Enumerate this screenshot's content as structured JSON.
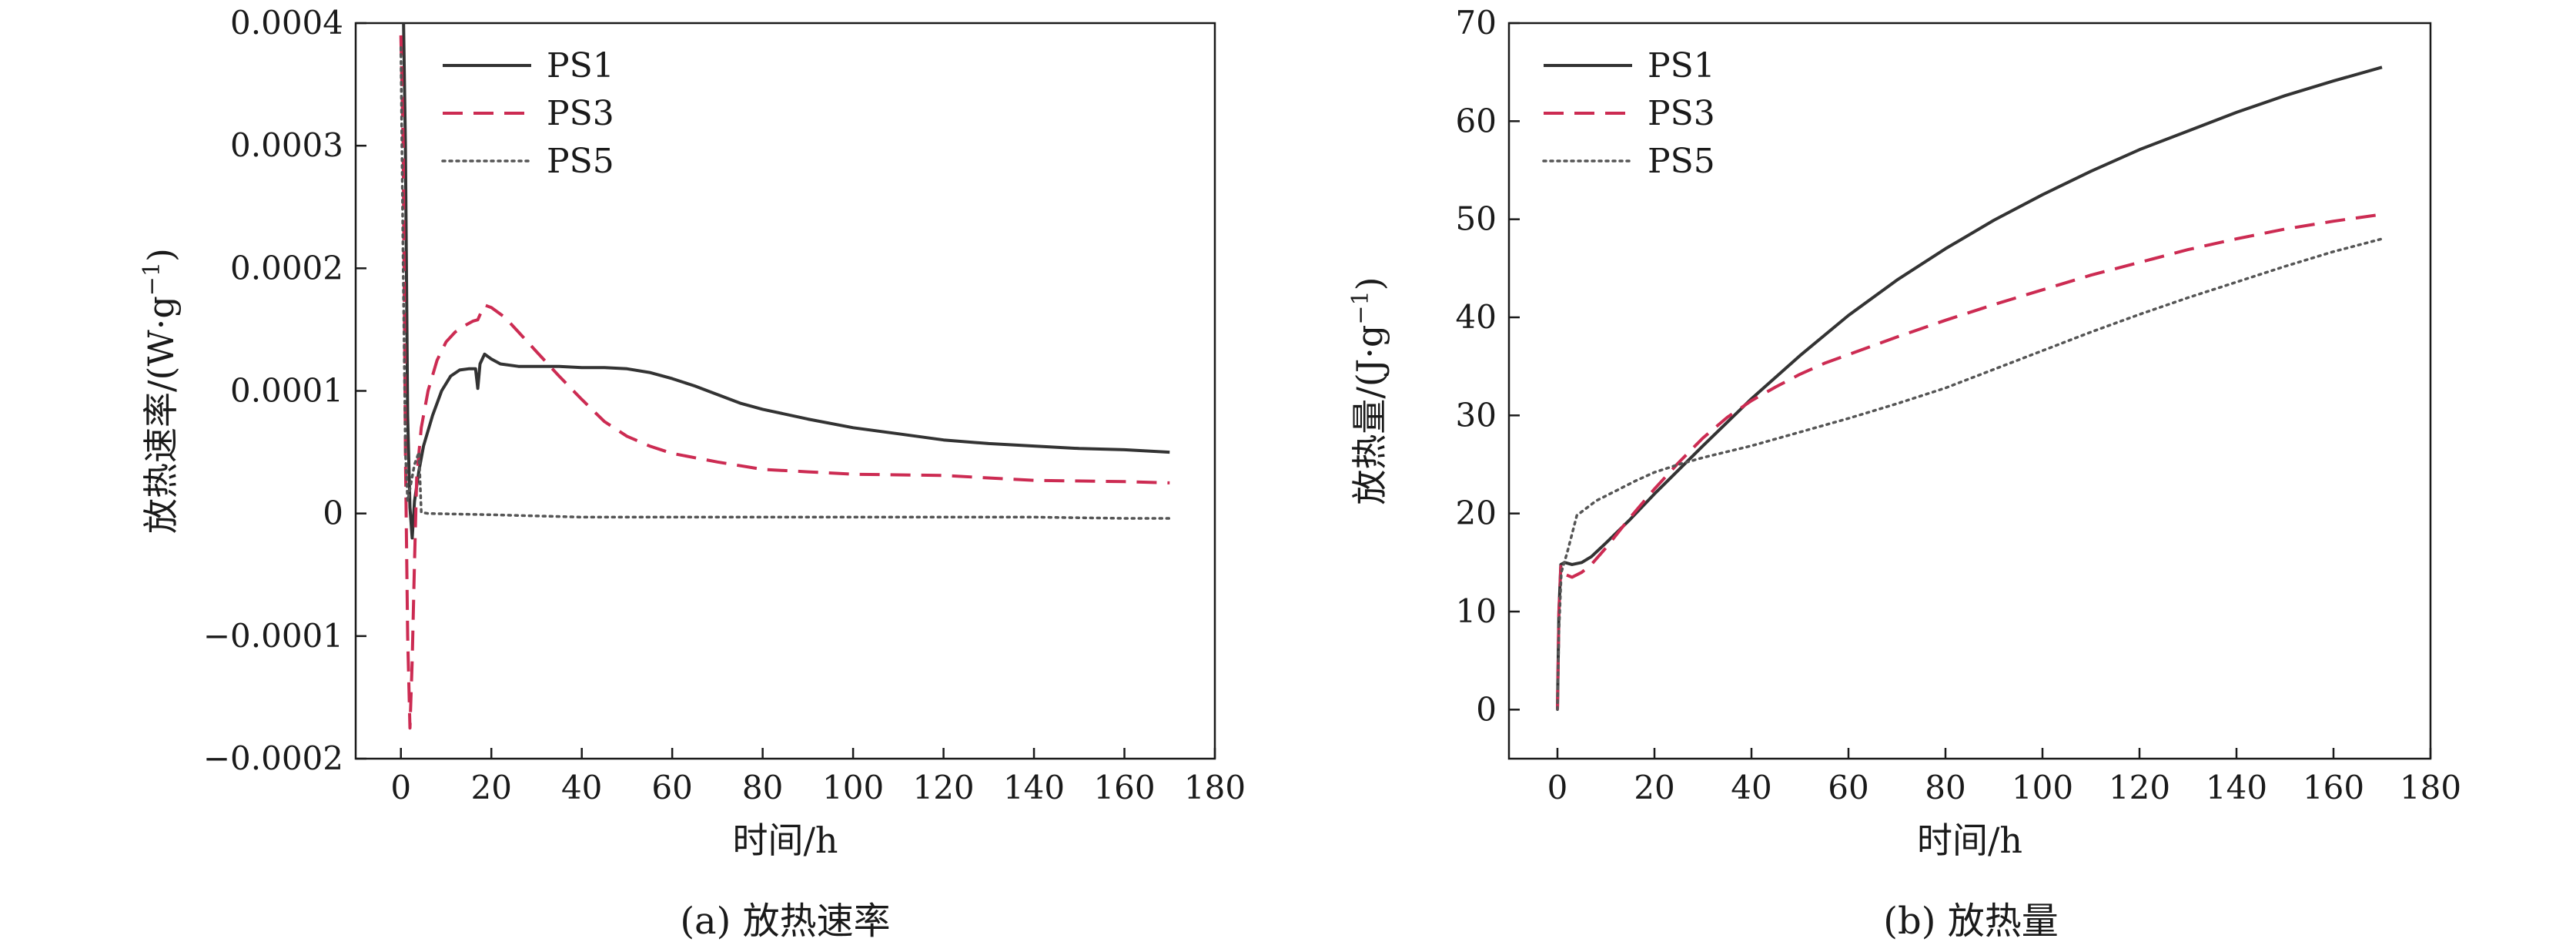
{
  "chart_data": [
    {
      "type": "line",
      "caption": "(a) 放热速率",
      "xlabel": "时间/h",
      "ylabel": "放热速率/(W·g",
      "ylabel_sup": "−1",
      "ylabel_close": ")",
      "xlim": [
        -10,
        180
      ],
      "ylim": [
        -0.0002,
        0.0004
      ],
      "xticks": [
        0,
        20,
        40,
        60,
        80,
        100,
        120,
        140,
        160,
        180
      ],
      "yticks": [
        -0.0002,
        -0.0001,
        0,
        0.0001,
        0.0002,
        0.0003,
        0.0004
      ],
      "ytick_labels": [
        "−0.0002",
        "−0.0001",
        "0",
        "0.0001",
        "0.0002",
        "0.0003",
        "0.0004"
      ],
      "legend_position": "top-left",
      "series": [
        {
          "name": "PS1",
          "color": "#333333",
          "dash": "solid",
          "points": [
            [
              0,
              0.0004
            ],
            [
              0.5,
              0.00042
            ],
            [
              1,
              0.0003
            ],
            [
              1.5,
              8e-05
            ],
            [
              2,
              5e-06
            ],
            [
              2.5,
              -2e-05
            ],
            [
              3,
              1e-05
            ],
            [
              4,
              3.5e-05
            ],
            [
              5,
              5.5e-05
            ],
            [
              7,
              8e-05
            ],
            [
              9,
              0.0001
            ],
            [
              11,
              0.000112
            ],
            [
              13,
              0.000117
            ],
            [
              15,
              0.000118
            ],
            [
              16.5,
              0.000118
            ],
            [
              17,
              0.000102
            ],
            [
              17.5,
              0.000122
            ],
            [
              18.5,
              0.00013
            ],
            [
              20,
              0.000126
            ],
            [
              22,
              0.000122
            ],
            [
              26,
              0.00012
            ],
            [
              30,
              0.00012
            ],
            [
              35,
              0.00012
            ],
            [
              40,
              0.000119
            ],
            [
              45,
              0.000119
            ],
            [
              50,
              0.000118
            ],
            [
              55,
              0.000115
            ],
            [
              60,
              0.00011
            ],
            [
              65,
              0.000104
            ],
            [
              70,
              9.7e-05
            ],
            [
              75,
              9e-05
            ],
            [
              80,
              8.5e-05
            ],
            [
              90,
              7.7e-05
            ],
            [
              100,
              7e-05
            ],
            [
              110,
              6.5e-05
            ],
            [
              120,
              6e-05
            ],
            [
              130,
              5.7e-05
            ],
            [
              140,
              5.5e-05
            ],
            [
              150,
              5.3e-05
            ],
            [
              160,
              5.2e-05
            ],
            [
              170,
              5e-05
            ]
          ]
        },
        {
          "name": "PS3",
          "color": "#cc2b52",
          "dash": "dashed",
          "points": [
            [
              0,
              0.00039
            ],
            [
              0.5,
              0.0003
            ],
            [
              1,
              5e-05
            ],
            [
              1.5,
              -0.0001
            ],
            [
              2,
              -0.000175
            ],
            [
              2.5,
              -0.00012
            ],
            [
              3,
              -4e-05
            ],
            [
              3.5,
              3e-05
            ],
            [
              4.5,
              7e-05
            ],
            [
              6,
              0.0001
            ],
            [
              8,
              0.000125
            ],
            [
              10,
              0.00014
            ],
            [
              12,
              0.000148
            ],
            [
              14,
              0.000153
            ],
            [
              16,
              0.000157
            ],
            [
              17,
              0.000158
            ],
            [
              17.6,
              0.000163
            ],
            [
              18.5,
              0.00017
            ],
            [
              20,
              0.000168
            ],
            [
              23,
              0.00016
            ],
            [
              26,
              0.000148
            ],
            [
              30,
              0.000132
            ],
            [
              35,
              0.000112
            ],
            [
              40,
              9.3e-05
            ],
            [
              45,
              7.5e-05
            ],
            [
              50,
              6.3e-05
            ],
            [
              55,
              5.5e-05
            ],
            [
              60,
              4.9e-05
            ],
            [
              70,
              4.2e-05
            ],
            [
              80,
              3.6e-05
            ],
            [
              90,
              3.4e-05
            ],
            [
              100,
              3.2e-05
            ],
            [
              120,
              3.1e-05
            ],
            [
              140,
              2.7e-05
            ],
            [
              160,
              2.6e-05
            ],
            [
              170,
              2.5e-05
            ]
          ]
        },
        {
          "name": "PS5",
          "color": "#555555",
          "dash": "dotted",
          "points": [
            [
              0,
              0.00038
            ],
            [
              0.5,
              0.0002
            ],
            [
              1,
              5e-05
            ],
            [
              1.5,
              1e-05
            ],
            [
              2,
              2e-05
            ],
            [
              3,
              4e-05
            ],
            [
              4,
              5e-05
            ],
            [
              4.5,
              1e-06
            ],
            [
              6,
              0.0
            ],
            [
              20,
              -1e-06
            ],
            [
              40,
              -3e-06
            ],
            [
              60,
              -3e-06
            ],
            [
              80,
              -3e-06
            ],
            [
              100,
              -3e-06
            ],
            [
              120,
              -3e-06
            ],
            [
              140,
              -3e-06
            ],
            [
              160,
              -4e-06
            ],
            [
              170,
              -4e-06
            ]
          ]
        }
      ]
    },
    {
      "type": "line",
      "caption": "(b) 放热量",
      "xlabel": "时间/h",
      "ylabel": "放热量/(J·g",
      "ylabel_sup": "−1",
      "ylabel_close": ")",
      "xlim": [
        -10,
        180
      ],
      "ylim": [
        -5,
        70
      ],
      "xticks": [
        0,
        20,
        40,
        60,
        80,
        100,
        120,
        140,
        160,
        180
      ],
      "yticks": [
        0,
        10,
        20,
        30,
        40,
        50,
        60,
        70
      ],
      "ytick_labels": [
        "0",
        "10",
        "20",
        "30",
        "40",
        "50",
        "60",
        "70"
      ],
      "legend_position": "top-left",
      "series": [
        {
          "name": "PS1",
          "color": "#333333",
          "dash": "solid",
          "points": [
            [
              0,
              0
            ],
            [
              0.3,
              10
            ],
            [
              0.7,
              14.8
            ],
            [
              1.5,
              15
            ],
            [
              3,
              14.8
            ],
            [
              5,
              15
            ],
            [
              7,
              15.6
            ],
            [
              10,
              17
            ],
            [
              15,
              19.4
            ],
            [
              20,
              22
            ],
            [
              30,
              26.9
            ],
            [
              40,
              31.7
            ],
            [
              50,
              36.1
            ],
            [
              60,
              40.2
            ],
            [
              70,
              43.8
            ],
            [
              80,
              47
            ],
            [
              90,
              49.9
            ],
            [
              100,
              52.5
            ],
            [
              110,
              54.9
            ],
            [
              120,
              57.1
            ],
            [
              130,
              59
            ],
            [
              140,
              60.9
            ],
            [
              150,
              62.6
            ],
            [
              160,
              64.1
            ],
            [
              170,
              65.5
            ]
          ]
        },
        {
          "name": "PS3",
          "color": "#cc2b52",
          "dash": "dashed",
          "points": [
            [
              0,
              0
            ],
            [
              0.3,
              10
            ],
            [
              0.7,
              14.6
            ],
            [
              1.5,
              13.8
            ],
            [
              3,
              13.5
            ],
            [
              5,
              14
            ],
            [
              7,
              14.8
            ],
            [
              10,
              16.5
            ],
            [
              15,
              19.6
            ],
            [
              20,
              22.5
            ],
            [
              25,
              25.2
            ],
            [
              30,
              27.7
            ],
            [
              35,
              29.8
            ],
            [
              40,
              31.5
            ],
            [
              45,
              32.9
            ],
            [
              50,
              34.2
            ],
            [
              55,
              35.3
            ],
            [
              60,
              36.2
            ],
            [
              70,
              38
            ],
            [
              80,
              39.7
            ],
            [
              90,
              41.3
            ],
            [
              100,
              42.8
            ],
            [
              110,
              44.3
            ],
            [
              120,
              45.6
            ],
            [
              130,
              46.9
            ],
            [
              140,
              48
            ],
            [
              150,
              49
            ],
            [
              160,
              49.8
            ],
            [
              170,
              50.5
            ]
          ]
        },
        {
          "name": "PS5",
          "color": "#555555",
          "dash": "dotted",
          "points": [
            [
              0,
              0
            ],
            [
              0.3,
              8
            ],
            [
              0.8,
              14
            ],
            [
              2,
              16
            ],
            [
              4,
              19.8
            ],
            [
              8,
              21.3
            ],
            [
              12,
              22.3
            ],
            [
              16,
              23.3
            ],
            [
              20,
              24.2
            ],
            [
              25,
              25
            ],
            [
              30,
              25.7
            ],
            [
              40,
              26.9
            ],
            [
              50,
              28.3
            ],
            [
              60,
              29.7
            ],
            [
              70,
              31.2
            ],
            [
              80,
              32.8
            ],
            [
              90,
              34.7
            ],
            [
              100,
              36.6
            ],
            [
              110,
              38.5
            ],
            [
              120,
              40.3
            ],
            [
              130,
              42
            ],
            [
              140,
              43.6
            ],
            [
              150,
              45.2
            ],
            [
              160,
              46.7
            ],
            [
              170,
              48
            ]
          ]
        }
      ]
    }
  ]
}
